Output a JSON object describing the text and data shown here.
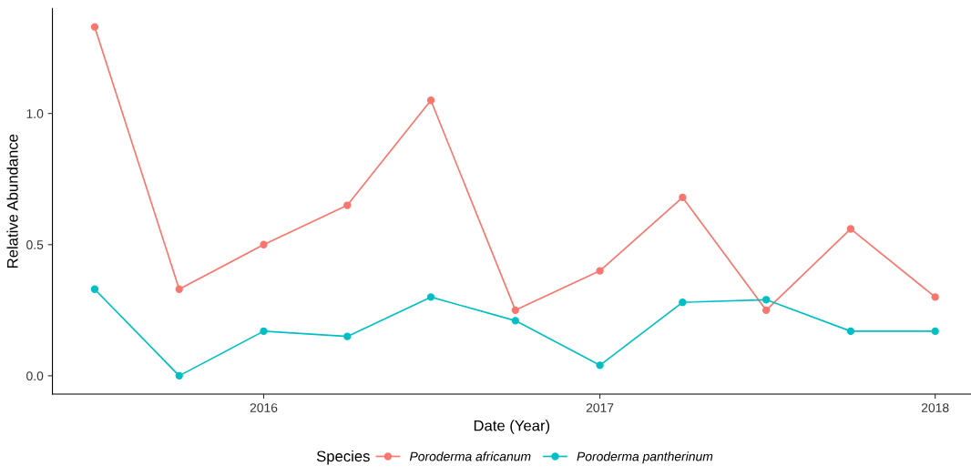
{
  "chart_data": {
    "type": "line",
    "xlabel": "Date (Year)",
    "ylabel": "Relative Abundance",
    "legend_title": "Species",
    "legend": "bottom",
    "marker": "circle",
    "line_style": "solid",
    "grid": false,
    "x": [
      "2015-07-01",
      "2015-10-01",
      "2016-01-01",
      "2016-04-01",
      "2016-07-01",
      "2016-10-01",
      "2017-01-01",
      "2017-04-01",
      "2017-07-01",
      "2017-10-01",
      "2018-01-01"
    ],
    "series": [
      {
        "name": "Poroderma africanum",
        "color": "#f8766d",
        "values": [
          1.33,
          0.33,
          0.5,
          0.65,
          1.05,
          0.25,
          0.4,
          0.68,
          0.25,
          0.56,
          0.3
        ]
      },
      {
        "name": "Poroderma pantherinum",
        "color": "#00bfc4",
        "values": [
          0.33,
          0,
          0.17,
          0.15,
          0.3,
          0.21,
          0.04,
          0.28,
          0.29,
          0.17,
          0.17
        ]
      }
    ],
    "xlim": [
      "2015-05-16",
      "2018-02-09"
    ],
    "xticks": [
      {
        "value": "2016-01-01",
        "label": "2016"
      },
      {
        "value": "2017-01-01",
        "label": "2017"
      },
      {
        "value": "2018-01-01",
        "label": "2018"
      }
    ],
    "ylim": [
      -0.07,
      1.4
    ],
    "yticks": [
      {
        "value": 0,
        "label": "0.0"
      },
      {
        "value": 0.5,
        "label": "0.5"
      },
      {
        "value": 1,
        "label": "1.0"
      }
    ]
  }
}
